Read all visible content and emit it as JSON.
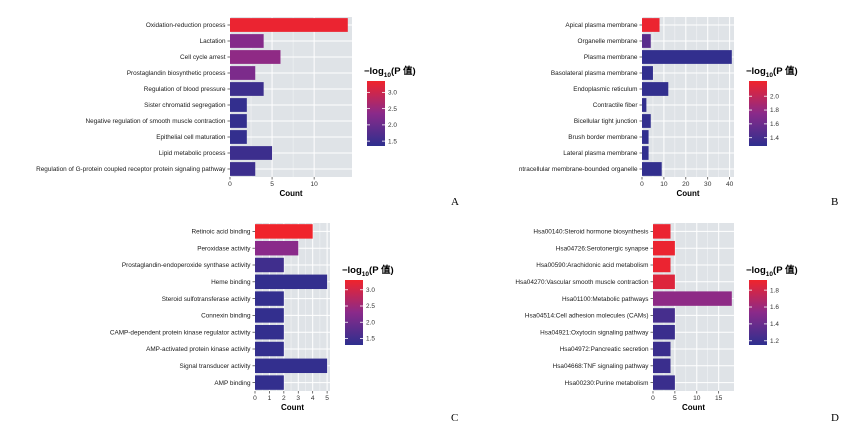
{
  "chart_data": [
    {
      "panel": "A",
      "type": "bar",
      "orientation": "horizontal",
      "categories": [
        "Oxidation-reduction process",
        "Lactation",
        "Cell cycle arrest",
        "Prostaglandin biosynthetic process",
        "Regulation of blood pressure",
        "Sister chromatid segregation",
        "Negative regulation of smooth muscle contraction",
        "Epithelial cell maturation",
        "Lipid metabolic process",
        "Regulation of G-protein coupled receptor protein signaling pathway"
      ],
      "values": [
        14,
        4,
        6,
        3,
        4,
        2,
        2,
        2,
        5,
        3
      ],
      "color_values": [
        3.3,
        2.3,
        2.4,
        2.2,
        1.5,
        1.4,
        1.4,
        1.4,
        1.5,
        1.5
      ],
      "xlabel": "Count",
      "xlim": [
        0,
        14.5
      ],
      "xticks": [
        0,
        5,
        10
      ],
      "legend_title": "−log",
      "legend_sub": "10",
      "legend_title_suffix": "(P 值)",
      "legend_ticks": [
        1.5,
        2.0,
        2.5,
        3.0
      ],
      "legend_range": [
        1.35,
        3.35
      ]
    },
    {
      "panel": "B",
      "type": "bar",
      "orientation": "horizontal",
      "categories": [
        "Apical plasma membrane",
        "Organelle membrane",
        "Plasma membrane",
        "Basolateral plasma membrane",
        "Endoplasmic reticulum",
        "Contractile fiber",
        "Bicellular tight junction",
        "Brush border membrane",
        "Lateral plasma membrane",
        "ntracellular membrane-bounded organelle"
      ],
      "values": [
        8,
        4,
        41,
        5,
        12,
        2,
        4,
        3,
        3,
        9
      ],
      "color_values": [
        2.2,
        1.5,
        1.3,
        1.3,
        1.3,
        1.3,
        1.3,
        1.3,
        1.3,
        1.3
      ],
      "xlabel": "Count",
      "xlim": [
        0,
        42
      ],
      "xticks": [
        0,
        10,
        20,
        30,
        40
      ],
      "legend_title": "−log",
      "legend_sub": "10",
      "legend_title_suffix": "(P 值)",
      "legend_ticks": [
        1.4,
        1.6,
        1.8,
        2.0
      ],
      "legend_range": [
        1.28,
        2.22
      ]
    },
    {
      "panel": "C",
      "type": "bar",
      "orientation": "horizontal",
      "categories": [
        "Retinoic acid binding",
        "Peroxidase activity",
        "Prostaglandin-endoperoxide synthase activity",
        "Heme binding",
        "Steroid sulfotransferase activity",
        "Connexin binding",
        "CAMP-dependent protein kinase regulator activity",
        "AMP-activated protein kinase activity",
        "Signal transducer activity",
        "AMP binding"
      ],
      "values": [
        4,
        3,
        2,
        5,
        2,
        2,
        2,
        2,
        5,
        2
      ],
      "color_values": [
        3.3,
        2.3,
        1.5,
        1.35,
        1.35,
        1.35,
        1.35,
        1.35,
        1.35,
        1.35
      ],
      "xlabel": "Count",
      "xlim": [
        0,
        5.2
      ],
      "xticks": [
        0,
        1,
        2,
        3,
        4,
        5
      ],
      "legend_title": "−log",
      "legend_sub": "10",
      "legend_title_suffix": "(P 值)",
      "legend_ticks": [
        1.5,
        2.0,
        2.5,
        3.0
      ],
      "legend_range": [
        1.3,
        3.3
      ]
    },
    {
      "panel": "D",
      "type": "bar",
      "orientation": "horizontal",
      "categories": [
        "Hsa00140:Steroid hormone biosynthesis",
        "Hsa04726:Serotonergic synapse",
        "Hsa00590:Arachidonic acid metabolism",
        "Hsa04270:Vascular smooth muscle contraction",
        "Hsa01100:Metabolic pathways",
        "Hsa04514:Cell adhesion molecules (CAMs)",
        "Hsa04921:Oxytocin signaling pathway",
        "Hsa04972:Pancreatic secretion",
        "Hsa04668:TNF signaling pathway",
        "Hsa00230:Purine metabolism"
      ],
      "values": [
        4,
        5,
        4,
        5,
        18,
        5,
        5,
        4,
        4,
        5
      ],
      "color_values": [
        1.9,
        1.9,
        1.9,
        1.85,
        1.55,
        1.25,
        1.2,
        1.2,
        1.2,
        1.2
      ],
      "xlabel": "Count",
      "xlim": [
        0,
        18.5
      ],
      "xticks": [
        0,
        5,
        10,
        15
      ],
      "legend_title": "−log",
      "legend_sub": "10",
      "legend_title_suffix": "(P 值)",
      "legend_ticks": [
        1.2,
        1.4,
        1.6,
        1.8
      ],
      "legend_range": [
        1.15,
        1.92
      ]
    }
  ],
  "colors": {
    "panel_bg": "#dfe3e7",
    "grid": "#ffffff",
    "low": "#2e2f8e",
    "mid": "#8a2a8a",
    "high": "#f0242c"
  }
}
